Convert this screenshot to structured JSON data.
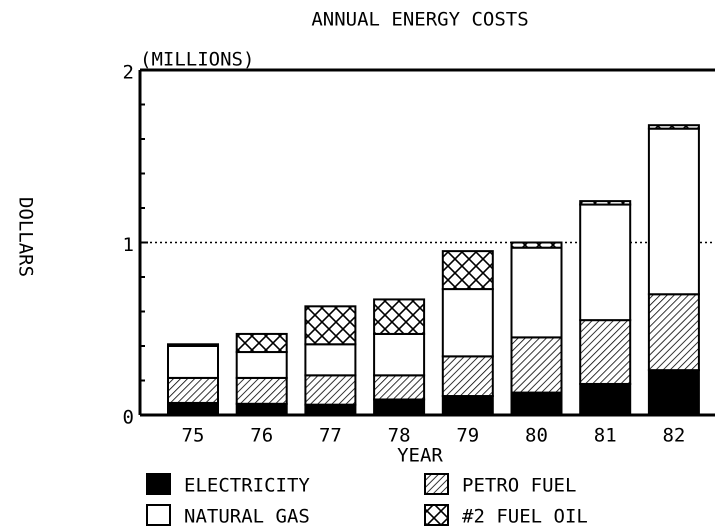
{
  "chart_data": {
    "type": "stacked_bar",
    "title": "ANNUAL ENERGY COSTS",
    "subtitle": "(MILLIONS)",
    "y_label": "DOLLARS",
    "x_label": "YEAR",
    "categories": [
      "75",
      "76",
      "77",
      "78",
      "79",
      "80",
      "81",
      "82"
    ],
    "series": [
      {
        "name": "ELECTRICITY",
        "color": "#000000",
        "pattern": "solid",
        "values": [
          0.07,
          0.065,
          0.06,
          0.09,
          0.11,
          0.13,
          0.18,
          0.26
        ]
      },
      {
        "name": "PETRO FUEL",
        "color": "#000000",
        "pattern": "hatch",
        "values": [
          0.145,
          0.15,
          0.17,
          0.14,
          0.23,
          0.32,
          0.37,
          0.44
        ]
      },
      {
        "name": "NATURAL GAS",
        "color": "#000000",
        "pattern": "none",
        "values": [
          0.185,
          0.15,
          0.18,
          0.24,
          0.39,
          0.52,
          0.67,
          0.96
        ]
      },
      {
        "name": "#2 FUEL OIL",
        "color": "#000000",
        "pattern": "cross",
        "values": [
          0.01,
          0.105,
          0.22,
          0.2,
          0.22,
          0.03,
          0.02,
          0.02
        ]
      }
    ],
    "ylim": [
      0,
      2
    ],
    "yticks": [
      0,
      1,
      2
    ],
    "minor_yticks": [
      0.2,
      0.4,
      0.6,
      0.8,
      1.2,
      1.4,
      1.6,
      1.8
    ],
    "reference_line": 1
  }
}
